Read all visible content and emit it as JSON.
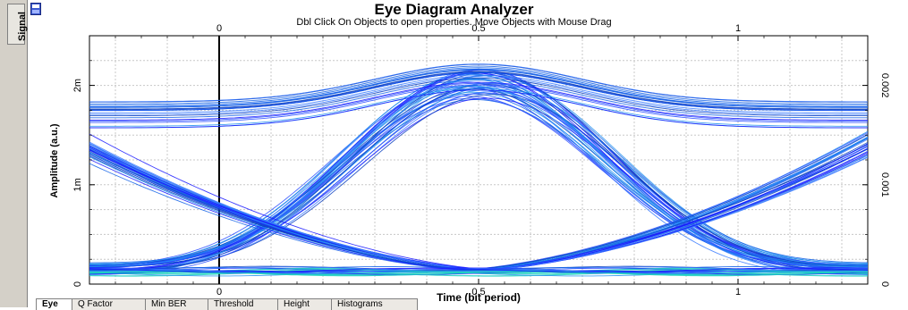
{
  "window": {
    "side_tab_label": "Signal",
    "title": "Eye Diagram Analyzer",
    "subtitle": "Dbl Click On Objects to open properties.  Move Objects with Mouse Drag"
  },
  "tabs": [
    {
      "label": "Eye",
      "active": true
    },
    {
      "label": "Q Factor",
      "active": false
    },
    {
      "label": "Min BER",
      "active": false
    },
    {
      "label": "Threshold",
      "active": false
    },
    {
      "label": "Height",
      "active": false
    },
    {
      "label": "Histograms",
      "active": false
    }
  ],
  "chart_data": {
    "type": "line",
    "title": "Eye Diagram Analyzer",
    "xlabel": "Time (bit period)",
    "ylabel": "Amplitude (a.u.)",
    "xlim": [
      -0.25,
      1.25
    ],
    "ylim": [
      0,
      0.0025
    ],
    "y2lim": [
      0,
      0.0025
    ],
    "x_ticks": [
      0,
      0.5,
      1
    ],
    "x_tick_labels": [
      "0",
      "0.5",
      "1"
    ],
    "y_ticks": [
      0,
      0.001,
      0.002
    ],
    "y_tick_labels": [
      "0",
      "1m",
      "2m"
    ],
    "y2_ticks": [
      0,
      0.001,
      0.002
    ],
    "y2_tick_labels": [
      "0",
      "0.001",
      "0.002"
    ],
    "grid": true,
    "trace_color": "#1a1aff",
    "highlight_color": "#1fd1c0",
    "eye_levels": {
      "high_peak": 0.002,
      "high_rail": 0.0017,
      "low_rail": 0.00013,
      "crossing": 0.00073
    },
    "crossing_times": [
      0,
      1
    ],
    "eye_center": 0.5
  }
}
